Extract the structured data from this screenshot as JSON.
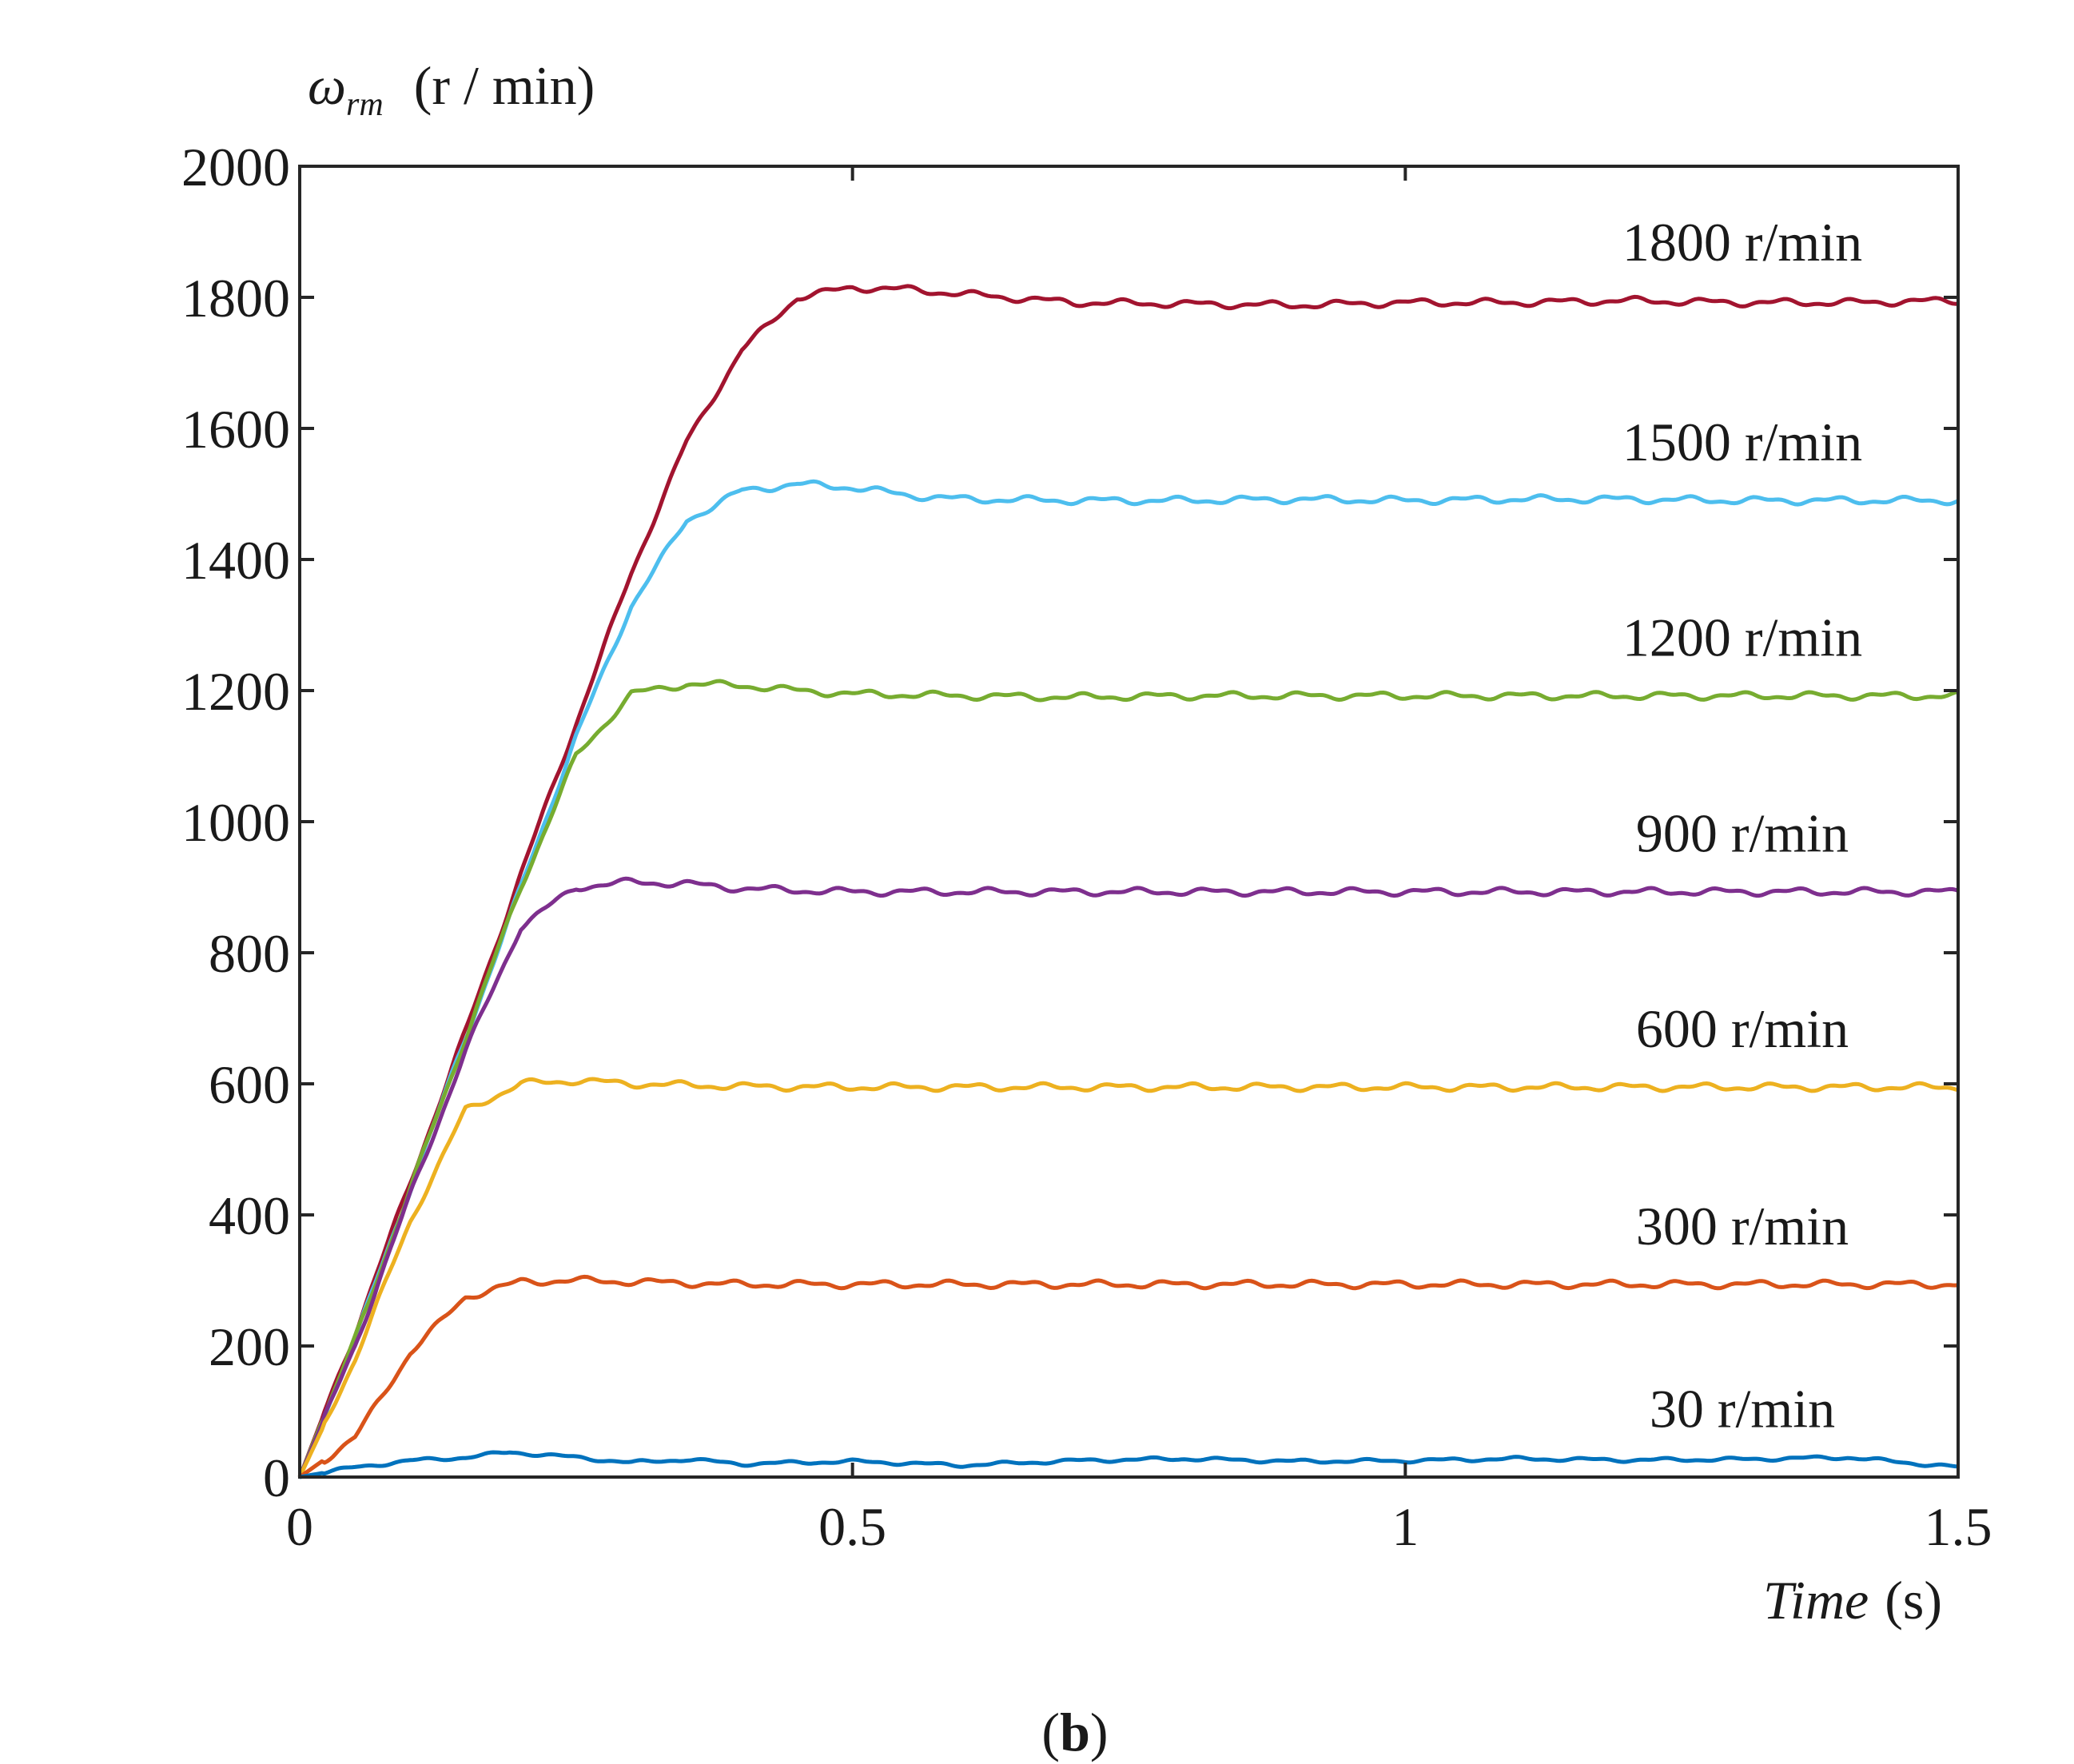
{
  "chart_data": {
    "type": "line",
    "title": "",
    "ylabel": {
      "symbol": "ω",
      "subscript": "rm",
      "unit": "(r / min)"
    },
    "xlabel": {
      "text": "Time",
      "unit": "(s)"
    },
    "xlim": [
      0,
      1.5
    ],
    "ylim": [
      0,
      2000
    ],
    "xticks": [
      0,
      0.5,
      1,
      1.5
    ],
    "xtick_labels": [
      "0",
      "0.5",
      "1",
      "1.5"
    ],
    "yticks": [
      0,
      200,
      400,
      600,
      800,
      1000,
      1200,
      1400,
      1600,
      1800,
      2000
    ],
    "ytick_labels": [
      "0",
      "200",
      "400",
      "600",
      "800",
      "1000",
      "1200",
      "1400",
      "1600",
      "1800",
      "2000"
    ],
    "grid": false,
    "series": [
      {
        "name": "1800 r/min",
        "color": "#a2142f",
        "x": [
          0,
          0.05,
          0.1,
          0.15,
          0.2,
          0.25,
          0.3,
          0.35,
          0.4,
          0.45,
          0.5,
          0.55,
          0.6,
          0.7,
          0.8,
          0.9,
          1.0,
          1.1,
          1.2,
          1.3,
          1.4,
          1.5
        ],
        "y": [
          0,
          220,
          450,
          680,
          920,
          1150,
          1380,
          1580,
          1720,
          1800,
          1815,
          1812,
          1805,
          1792,
          1790,
          1788,
          1792,
          1792,
          1795,
          1792,
          1792,
          1795
        ]
      },
      {
        "name": "1500 r/min",
        "color": "#4dbeee",
        "x": [
          0,
          0.05,
          0.1,
          0.15,
          0.2,
          0.25,
          0.3,
          0.35,
          0.4,
          0.45,
          0.5,
          0.55,
          0.6,
          0.7,
          0.8,
          0.9,
          1.0,
          1.1,
          1.2,
          1.3,
          1.4,
          1.5
        ],
        "y": [
          0,
          210,
          440,
          670,
          900,
          1130,
          1330,
          1460,
          1505,
          1515,
          1510,
          1498,
          1492,
          1490,
          1490,
          1492,
          1490,
          1492,
          1492,
          1490,
          1490,
          1490
        ]
      },
      {
        "name": "1200 r/min",
        "color": "#77ac30",
        "x": [
          0,
          0.05,
          0.1,
          0.15,
          0.2,
          0.25,
          0.3,
          0.35,
          0.4,
          0.45,
          0.5,
          0.6,
          0.7,
          0.8,
          0.9,
          1.0,
          1.1,
          1.2,
          1.3,
          1.4,
          1.5
        ],
        "y": [
          0,
          210,
          440,
          670,
          900,
          1100,
          1195,
          1210,
          1208,
          1200,
          1195,
          1192,
          1190,
          1192,
          1192,
          1192,
          1192,
          1192,
          1192,
          1192,
          1192
        ]
      },
      {
        "name": "900 r/min",
        "color": "#7e2f8e",
        "x": [
          0,
          0.05,
          0.1,
          0.15,
          0.2,
          0.25,
          0.3,
          0.35,
          0.4,
          0.45,
          0.5,
          0.6,
          0.7,
          0.8,
          0.9,
          1.0,
          1.1,
          1.2,
          1.3,
          1.4,
          1.5
        ],
        "y": [
          0,
          200,
          430,
          650,
          840,
          900,
          908,
          905,
          898,
          895,
          893,
          893,
          893,
          893,
          893,
          893,
          893,
          893,
          893,
          893,
          893
        ]
      },
      {
        "name": "600 r/min",
        "color": "#edb120",
        "x": [
          0,
          0.05,
          0.1,
          0.15,
          0.2,
          0.25,
          0.3,
          0.35,
          0.4,
          0.5,
          0.6,
          0.7,
          0.8,
          0.9,
          1.0,
          1.1,
          1.2,
          1.3,
          1.4,
          1.5
        ],
        "y": [
          0,
          180,
          390,
          560,
          600,
          605,
          600,
          598,
          596,
          595,
          595,
          595,
          595,
          595,
          595,
          595,
          595,
          595,
          595,
          595
        ]
      },
      {
        "name": "300 r/min",
        "color": "#d95319",
        "x": [
          0,
          0.05,
          0.1,
          0.15,
          0.2,
          0.25,
          0.3,
          0.35,
          0.4,
          0.5,
          0.6,
          0.7,
          0.8,
          0.9,
          1.0,
          1.1,
          1.2,
          1.3,
          1.4,
          1.5
        ],
        "y": [
          0,
          60,
          190,
          275,
          298,
          300,
          298,
          296,
          294,
          294,
          294,
          294,
          294,
          294,
          294,
          294,
          294,
          294,
          294,
          294
        ]
      },
      {
        "name": "30 r/min",
        "color": "#0072bd",
        "x": [
          0,
          0.05,
          0.1,
          0.15,
          0.19,
          0.25,
          0.3,
          0.35,
          0.4,
          0.5,
          0.6,
          0.7,
          0.8,
          0.9,
          1.0,
          1.1,
          1.2,
          1.3,
          1.4,
          1.5
        ],
        "y": [
          0,
          15,
          25,
          30,
          38,
          30,
          22,
          27,
          20,
          24,
          18,
          25,
          28,
          24,
          25,
          28,
          26,
          27,
          30,
          15
        ]
      }
    ]
  },
  "figure_label": {
    "open": "(",
    "letter": "b",
    "close": ")"
  }
}
